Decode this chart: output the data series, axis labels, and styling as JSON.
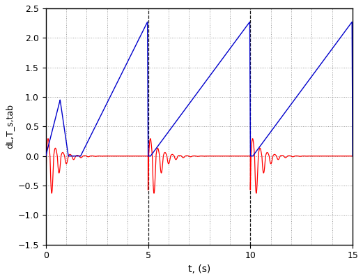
{
  "title": "",
  "xlabel": "t, (s)",
  "ylabel": "dL,T_s,tab",
  "xlim": [
    0,
    15
  ],
  "ylim": [
    -1.5,
    2.5
  ],
  "xticks": [
    0,
    5,
    10,
    15
  ],
  "yticks": [
    -1.5,
    -1.0,
    -0.5,
    0,
    0.5,
    1.0,
    1.5,
    2.0,
    2.5
  ],
  "blue_color": "#0000CC",
  "red_color": "#FF0000",
  "bg_color": "#FFFFFF",
  "figsize": [
    5.21,
    4.0
  ],
  "dpi": 100,
  "blue_peak": 2.27,
  "blue_initial_peak": 0.95,
  "segment_duration": 5.0
}
